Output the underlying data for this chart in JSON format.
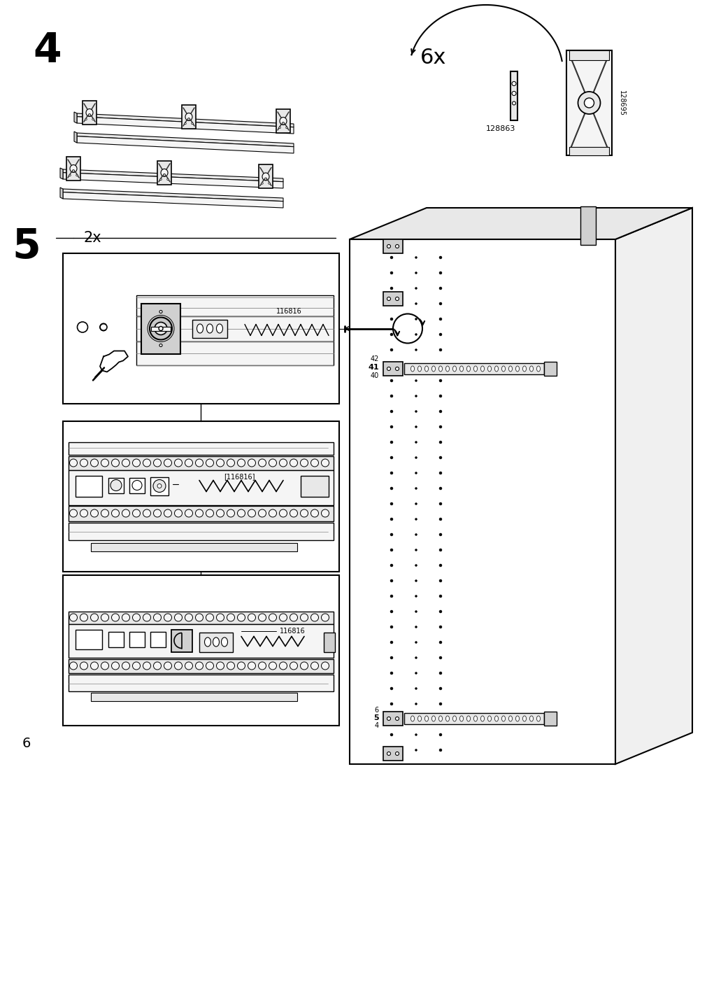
{
  "page_number": "6",
  "step4_label": "4",
  "step5_label": "5",
  "qty_4": "6x",
  "qty_5": "2x",
  "part_128863": "128863",
  "part_128695": "128695",
  "part_116816": "116816",
  "bg": "#ffffff",
  "lc": "#000000",
  "lc2": "#1a1a1a",
  "gray1": "#f5f5f5",
  "gray2": "#e8e8e8",
  "gray3": "#d0d0d0",
  "gray4": "#b0b0b0"
}
